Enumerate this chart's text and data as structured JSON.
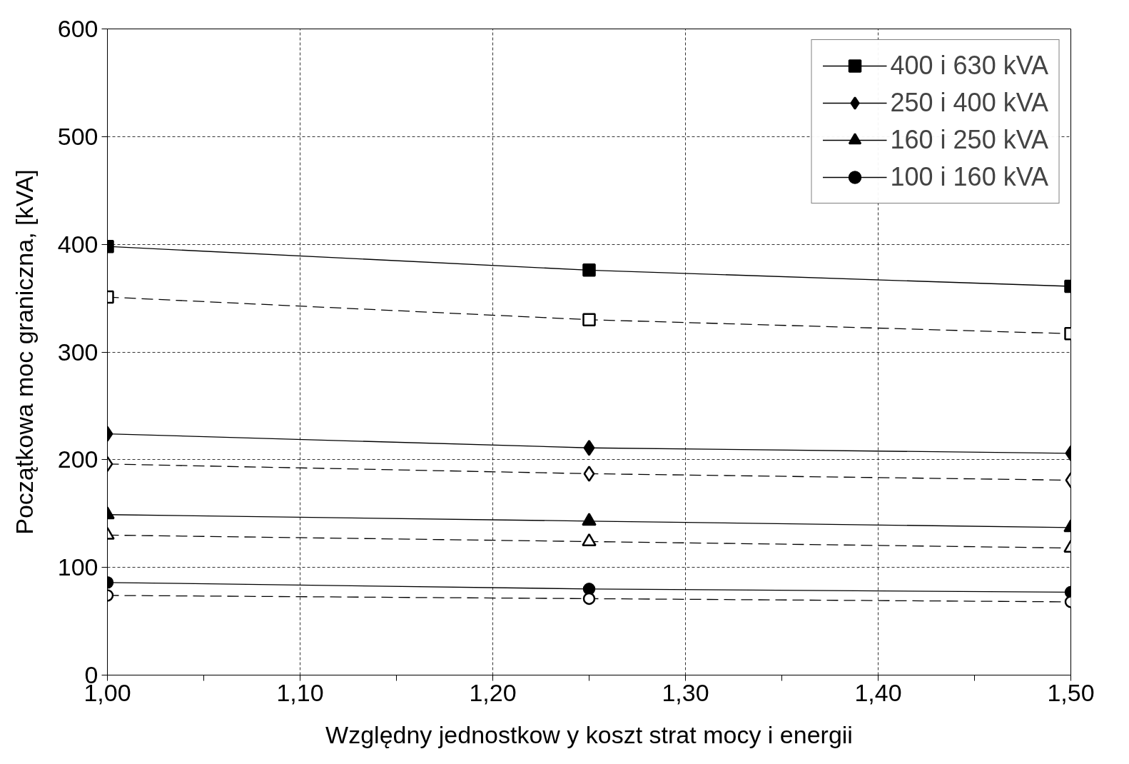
{
  "chart_data": {
    "type": "line",
    "xlabel": "Względny jednostkow y koszt strat mocy i energii",
    "ylabel": "Początkowa moc graniczna, [kVA]",
    "x": [
      1.0,
      1.25,
      1.5
    ],
    "xlim": [
      1.0,
      1.5
    ],
    "xticks": [
      {
        "value": 1.0,
        "label": "1,00"
      },
      {
        "value": 1.1,
        "label": "1,10"
      },
      {
        "value": 1.2,
        "label": "1,20"
      },
      {
        "value": 1.3,
        "label": "1,30"
      },
      {
        "value": 1.4,
        "label": "1,40"
      },
      {
        "value": 1.5,
        "label": "1,50"
      }
    ],
    "ylim": [
      0,
      600
    ],
    "yticks": [
      0,
      100,
      200,
      300,
      400,
      500,
      600
    ],
    "grid": true,
    "legend": "top right",
    "series": [
      {
        "name": "400 i 630 kVA",
        "color": "#000000",
        "marker": "square",
        "line_style": "solid",
        "values": [
          398,
          376,
          361
        ]
      },
      {
        "color": "#000000",
        "marker": "square",
        "line_style": "dashed",
        "values": [
          351,
          330,
          317
        ]
      },
      {
        "name": "250 i 400 kVA",
        "color": "#000000",
        "marker": "diamond",
        "line_style": "solid",
        "values": [
          224,
          211,
          206
        ]
      },
      {
        "color": "#000000",
        "marker": "diamond",
        "line_style": "dashed",
        "values": [
          196,
          187,
          181
        ]
      },
      {
        "name": "160 i 250 kVA",
        "color": "#000000",
        "marker": "triangle",
        "line_style": "solid",
        "values": [
          149,
          143,
          137
        ]
      },
      {
        "color": "#000000",
        "marker": "triangle",
        "line_style": "dashed",
        "values": [
          130,
          124,
          118
        ]
      },
      {
        "name": "100 i 160 kVA",
        "color": "#000000",
        "marker": "circle",
        "line_style": "solid",
        "values": [
          86,
          80,
          77
        ]
      },
      {
        "color": "#000000",
        "marker": "circle",
        "line_style": "dashed",
        "values": [
          74,
          71,
          68
        ]
      }
    ]
  }
}
